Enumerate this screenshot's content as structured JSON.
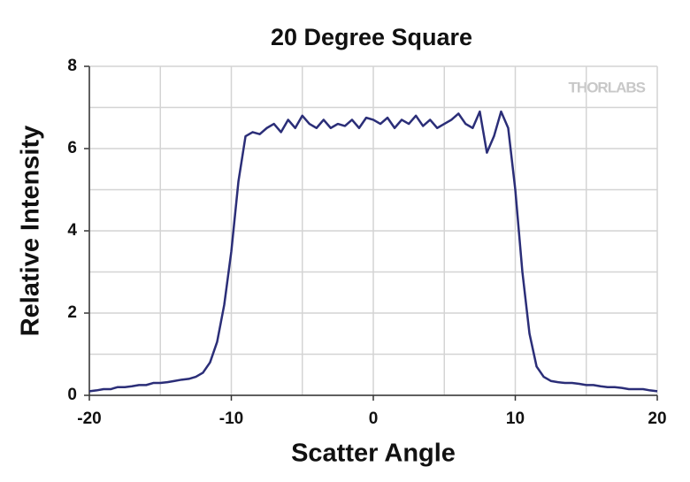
{
  "chart_data": {
    "type": "line",
    "title": "20 Degree Square",
    "xlabel": "Scatter Angle",
    "ylabel": "Relative Intensity",
    "watermark": "THORLABS",
    "x": [
      -20,
      -19.5,
      -19,
      -18.5,
      -18,
      -17.5,
      -17,
      -16.5,
      -16,
      -15.5,
      -15,
      -14.5,
      -14,
      -13.5,
      -13,
      -12.5,
      -12,
      -11.5,
      -11,
      -10.5,
      -10,
      -9.5,
      -9,
      -8.5,
      -8,
      -7.5,
      -7,
      -6.5,
      -6,
      -5.5,
      -5,
      -4.5,
      -4,
      -3.5,
      -3,
      -2.5,
      -2,
      -1.5,
      -1,
      -0.5,
      0,
      0.5,
      1,
      1.5,
      2,
      2.5,
      3,
      3.5,
      4,
      4.5,
      5,
      5.5,
      6,
      6.5,
      7,
      7.5,
      8,
      8.5,
      9,
      9.5,
      10,
      10.5,
      11,
      11.5,
      12,
      12.5,
      13,
      13.5,
      14,
      14.5,
      15,
      15.5,
      16,
      16.5,
      17,
      17.5,
      18,
      18.5,
      19,
      19.5,
      20
    ],
    "series": [
      {
        "name": "20 Degree Square",
        "color": "#2b2e78",
        "values": [
          0.1,
          0.12,
          0.15,
          0.15,
          0.2,
          0.2,
          0.22,
          0.25,
          0.25,
          0.3,
          0.3,
          0.32,
          0.35,
          0.38,
          0.4,
          0.45,
          0.55,
          0.8,
          1.3,
          2.2,
          3.5,
          5.2,
          6.3,
          6.4,
          6.35,
          6.5,
          6.6,
          6.4,
          6.7,
          6.5,
          6.8,
          6.6,
          6.5,
          6.7,
          6.5,
          6.6,
          6.55,
          6.7,
          6.5,
          6.75,
          6.7,
          6.6,
          6.75,
          6.5,
          6.7,
          6.6,
          6.8,
          6.55,
          6.7,
          6.5,
          6.6,
          6.7,
          6.85,
          6.6,
          6.5,
          6.9,
          5.9,
          6.3,
          6.9,
          6.5,
          5.0,
          3.0,
          1.5,
          0.7,
          0.45,
          0.35,
          0.32,
          0.3,
          0.3,
          0.28,
          0.25,
          0.25,
          0.22,
          0.2,
          0.2,
          0.18,
          0.15,
          0.15,
          0.15,
          0.12,
          0.1
        ]
      }
    ],
    "xlim": [
      -20,
      20
    ],
    "ylim": [
      0,
      8
    ],
    "xticks": [
      -20,
      -10,
      0,
      10,
      20
    ],
    "yticks": [
      0,
      2,
      4,
      6,
      8
    ],
    "minor_xticks": [
      -15,
      -5,
      5,
      15
    ],
    "minor_yticks": [
      1,
      3,
      5,
      7
    ],
    "grid": true
  }
}
